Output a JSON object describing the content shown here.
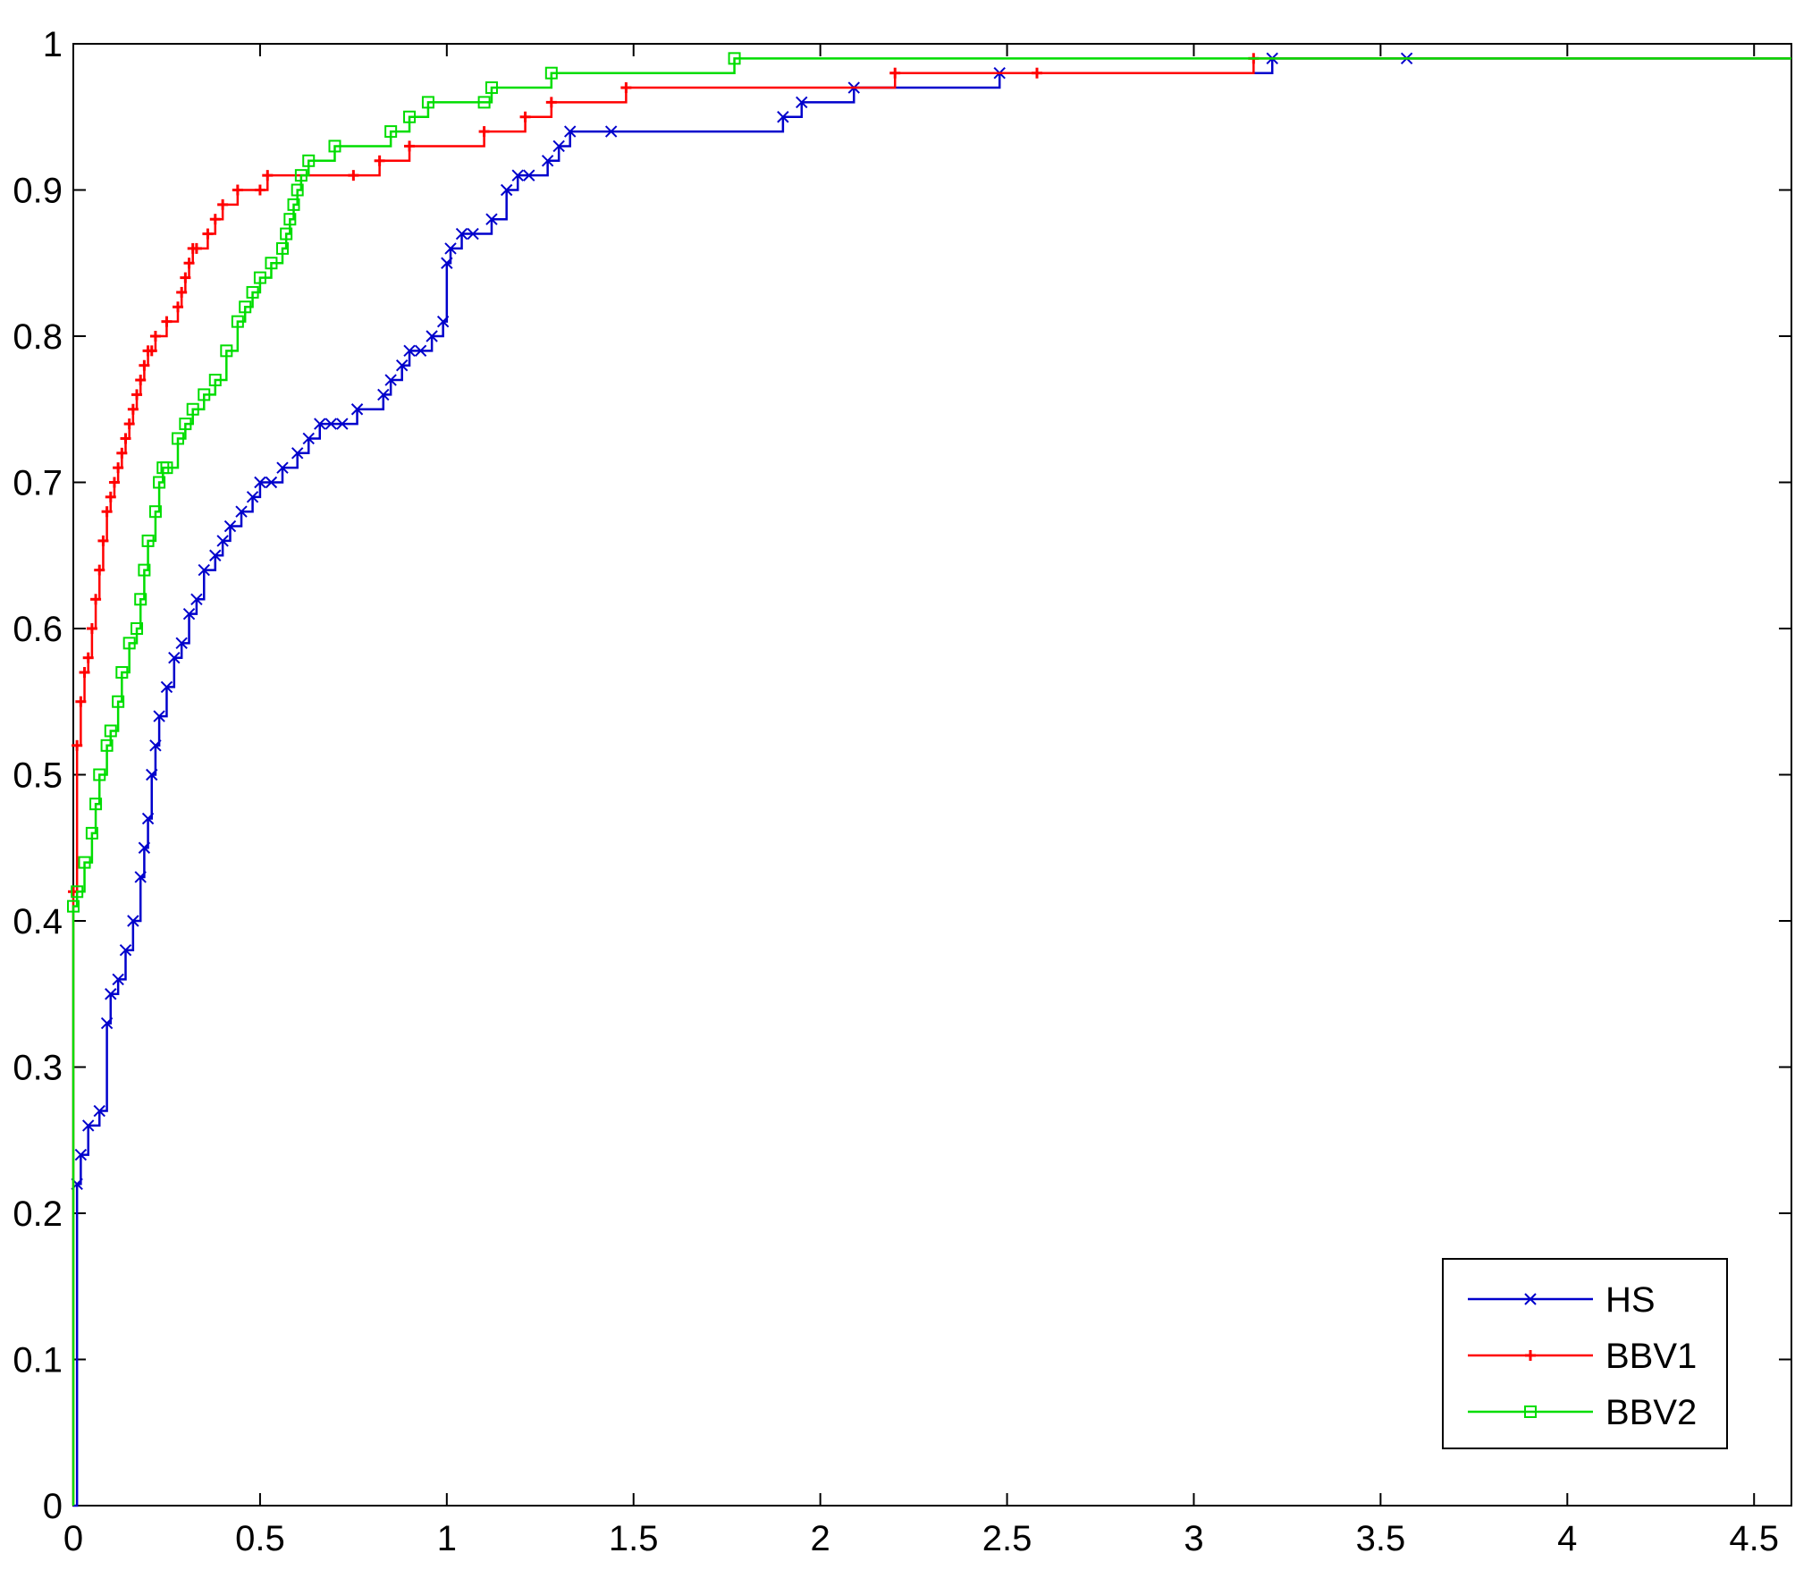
{
  "chart_data": {
    "type": "line",
    "title": "",
    "xlabel": "",
    "ylabel": "",
    "xlim": [
      0,
      4.6
    ],
    "ylim": [
      0,
      1
    ],
    "grid": false,
    "legend_position": "bottom-right",
    "x_ticks": [
      0,
      0.5,
      1,
      1.5,
      2,
      2.5,
      3,
      3.5,
      4,
      4.5
    ],
    "x_tick_labels": [
      "0",
      "0.5",
      "1",
      "1.5",
      "2",
      "2.5",
      "3",
      "3.5",
      "4",
      "4.5"
    ],
    "y_ticks": [
      0,
      0.1,
      0.2,
      0.3,
      0.4,
      0.5,
      0.6,
      0.7,
      0.8,
      0.9,
      1
    ],
    "y_tick_labels": [
      "0",
      "0.1",
      "0.2",
      "0.3",
      "0.4",
      "0.5",
      "0.6",
      "0.7",
      "0.8",
      "0.9",
      "1"
    ],
    "series": [
      {
        "name": "HS",
        "color": "#0000cc",
        "marker": "x",
        "x": [
          0,
          0.01,
          0.02,
          0.04,
          0.07,
          0.09,
          0.1,
          0.12,
          0.14,
          0.16,
          0.18,
          0.19,
          0.2,
          0.21,
          0.22,
          0.23,
          0.25,
          0.27,
          0.29,
          0.31,
          0.33,
          0.35,
          0.38,
          0.4,
          0.42,
          0.45,
          0.48,
          0.5,
          0.53,
          0.56,
          0.6,
          0.63,
          0.66,
          0.69,
          0.72,
          0.76,
          0.83,
          0.85,
          0.88,
          0.9,
          0.93,
          0.96,
          0.99,
          1.0,
          1.01,
          1.04,
          1.07,
          1.12,
          1.16,
          1.19,
          1.22,
          1.27,
          1.3,
          1.33,
          1.44,
          1.9,
          1.95,
          2.09,
          2.48,
          3.21,
          3.57,
          4.6
        ],
        "y": [
          0,
          0.22,
          0.24,
          0.26,
          0.27,
          0.33,
          0.35,
          0.36,
          0.38,
          0.4,
          0.43,
          0.45,
          0.47,
          0.5,
          0.52,
          0.54,
          0.56,
          0.58,
          0.59,
          0.61,
          0.62,
          0.64,
          0.65,
          0.66,
          0.67,
          0.68,
          0.69,
          0.7,
          0.7,
          0.71,
          0.72,
          0.73,
          0.74,
          0.74,
          0.74,
          0.75,
          0.76,
          0.77,
          0.78,
          0.79,
          0.79,
          0.8,
          0.81,
          0.85,
          0.86,
          0.87,
          0.87,
          0.88,
          0.9,
          0.91,
          0.91,
          0.92,
          0.93,
          0.94,
          0.94,
          0.95,
          0.96,
          0.97,
          0.98,
          0.99,
          0.99,
          0.99
        ]
      },
      {
        "name": "BBV1",
        "color": "#ff0000",
        "marker": "+",
        "x": [
          0,
          0.0,
          0.01,
          0.02,
          0.03,
          0.04,
          0.05,
          0.06,
          0.07,
          0.08,
          0.09,
          0.1,
          0.11,
          0.12,
          0.13,
          0.14,
          0.15,
          0.16,
          0.17,
          0.18,
          0.19,
          0.2,
          0.21,
          0.22,
          0.25,
          0.28,
          0.29,
          0.3,
          0.31,
          0.32,
          0.33,
          0.36,
          0.38,
          0.4,
          0.44,
          0.5,
          0.52,
          0.75,
          0.82,
          0.9,
          1.1,
          1.21,
          1.28,
          1.48,
          2.2,
          2.58,
          3.16,
          4.6
        ],
        "y": [
          0,
          0.42,
          0.52,
          0.55,
          0.57,
          0.58,
          0.6,
          0.62,
          0.64,
          0.66,
          0.68,
          0.69,
          0.7,
          0.71,
          0.72,
          0.73,
          0.74,
          0.75,
          0.76,
          0.77,
          0.78,
          0.79,
          0.79,
          0.8,
          0.81,
          0.82,
          0.83,
          0.84,
          0.85,
          0.86,
          0.86,
          0.87,
          0.88,
          0.89,
          0.9,
          0.9,
          0.91,
          0.91,
          0.92,
          0.93,
          0.94,
          0.95,
          0.96,
          0.97,
          0.98,
          0.98,
          0.99,
          0.99
        ]
      },
      {
        "name": "BBV2",
        "color": "#00dd00",
        "marker": "square",
        "x": [
          0,
          0.0,
          0.01,
          0.03,
          0.05,
          0.06,
          0.07,
          0.09,
          0.1,
          0.12,
          0.13,
          0.15,
          0.17,
          0.18,
          0.19,
          0.2,
          0.22,
          0.23,
          0.24,
          0.25,
          0.28,
          0.3,
          0.32,
          0.35,
          0.38,
          0.41,
          0.44,
          0.46,
          0.48,
          0.5,
          0.53,
          0.56,
          0.57,
          0.58,
          0.59,
          0.6,
          0.61,
          0.63,
          0.7,
          0.85,
          0.9,
          0.95,
          1.1,
          1.12,
          1.28,
          1.77,
          4.6
        ],
        "y": [
          0,
          0.41,
          0.42,
          0.44,
          0.46,
          0.48,
          0.5,
          0.52,
          0.53,
          0.55,
          0.57,
          0.59,
          0.6,
          0.62,
          0.64,
          0.66,
          0.68,
          0.7,
          0.71,
          0.71,
          0.73,
          0.74,
          0.75,
          0.76,
          0.77,
          0.79,
          0.81,
          0.82,
          0.83,
          0.84,
          0.85,
          0.86,
          0.87,
          0.88,
          0.89,
          0.9,
          0.91,
          0.92,
          0.93,
          0.94,
          0.95,
          0.96,
          0.96,
          0.97,
          0.98,
          0.99,
          0.99
        ]
      }
    ]
  }
}
